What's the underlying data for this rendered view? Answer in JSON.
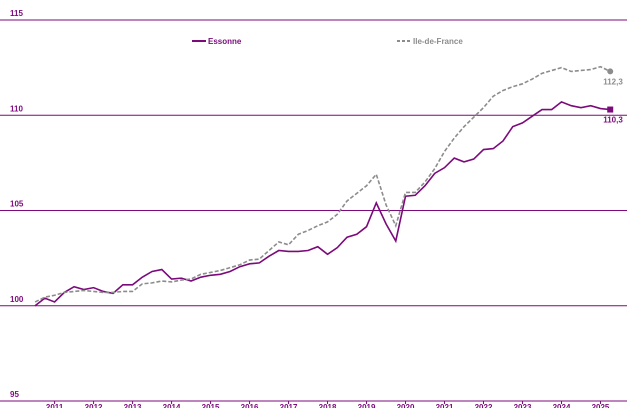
{
  "chart_data": {
    "type": "line",
    "x": [
      2011,
      2011.25,
      2011.5,
      2011.75,
      2012,
      2012.25,
      2012.5,
      2012.75,
      2013,
      2013.25,
      2013.5,
      2013.75,
      2014,
      2014.25,
      2014.5,
      2014.75,
      2015,
      2015.25,
      2015.5,
      2015.75,
      2016,
      2016.25,
      2016.5,
      2016.75,
      2017,
      2017.25,
      2017.5,
      2017.75,
      2018,
      2018.25,
      2018.5,
      2018.75,
      2019,
      2019.25,
      2019.5,
      2019.75,
      2020,
      2020.25,
      2020.5,
      2020.75,
      2021,
      2021.25,
      2021.5,
      2021.75,
      2022,
      2022.25,
      2022.5,
      2022.75,
      2023,
      2023.25,
      2023.5,
      2023.75,
      2024,
      2024.25,
      2024.5,
      2024.75,
      2025,
      2025.25,
      2025.5,
      2025.75
    ],
    "series": [
      {
        "name": "Essonne",
        "color": "#7b0a7b",
        "dashed": false,
        "marker": "square",
        "values": [
          100.0,
          100.4,
          100.2,
          100.7,
          101.0,
          100.85,
          100.95,
          100.75,
          100.65,
          101.1,
          101.1,
          101.5,
          101.8,
          101.9,
          101.4,
          101.45,
          101.3,
          101.5,
          101.6,
          101.65,
          101.8,
          102.05,
          102.2,
          102.25,
          102.6,
          102.9,
          102.85,
          102.85,
          102.9,
          103.1,
          102.7,
          103.05,
          103.6,
          103.75,
          104.15,
          105.4,
          104.3,
          103.4,
          105.75,
          105.8,
          106.3,
          106.95,
          107.25,
          107.75,
          107.55,
          107.7,
          108.2,
          108.25,
          108.65,
          109.4,
          109.6,
          109.95,
          110.3,
          110.3,
          110.7,
          110.5,
          110.4,
          110.5,
          110.35,
          110.3
        ],
        "value_labels": [
          null,
          null,
          null,
          null,
          null,
          null,
          null,
          null,
          null,
          null,
          null,
          null,
          null,
          null,
          null,
          null,
          null,
          null,
          null,
          null,
          null,
          null,
          null,
          null,
          null,
          null,
          null,
          null,
          null,
          null,
          null,
          null,
          null,
          null,
          null,
          null,
          null,
          null,
          null,
          null,
          null,
          null,
          null,
          null,
          null,
          null,
          null,
          null,
          null,
          null,
          null,
          null,
          null,
          null,
          null,
          null,
          null,
          null,
          null,
          "110,3"
        ]
      },
      {
        "name": "Ile-de-France",
        "color": "#8c8c8c",
        "dashed": true,
        "marker": "circle",
        "values": [
          100.2,
          100.45,
          100.55,
          100.7,
          100.75,
          100.8,
          100.75,
          100.7,
          100.7,
          100.75,
          100.75,
          101.15,
          101.2,
          101.3,
          101.25,
          101.35,
          101.4,
          101.65,
          101.75,
          101.85,
          102.0,
          102.15,
          102.4,
          102.45,
          102.9,
          103.35,
          103.2,
          103.75,
          103.95,
          104.2,
          104.4,
          104.8,
          105.5,
          105.9,
          106.3,
          106.9,
          105.3,
          104.2,
          105.95,
          105.95,
          106.5,
          107.2,
          108.1,
          108.8,
          109.4,
          109.9,
          110.4,
          111.0,
          111.3,
          111.5,
          111.65,
          111.9,
          112.2,
          112.35,
          112.5,
          112.3,
          112.35,
          112.4,
          112.55,
          112.3
        ],
        "value_labels": [
          null,
          null,
          null,
          null,
          null,
          null,
          null,
          null,
          null,
          null,
          null,
          null,
          null,
          null,
          null,
          null,
          null,
          null,
          null,
          null,
          null,
          null,
          null,
          null,
          null,
          null,
          null,
          null,
          null,
          null,
          null,
          null,
          null,
          null,
          null,
          null,
          null,
          null,
          null,
          null,
          null,
          null,
          null,
          null,
          null,
          null,
          null,
          null,
          null,
          null,
          null,
          null,
          null,
          null,
          null,
          null,
          null,
          null,
          null,
          "112,3"
        ]
      }
    ],
    "xlim": [
      2010.1,
      2026.18
    ],
    "xticks": [
      {
        "value": 2011.5,
        "label": "2011"
      },
      {
        "value": 2012.5,
        "label": "2012"
      },
      {
        "value": 2013.5,
        "label": "2013"
      },
      {
        "value": 2014.5,
        "label": "2014"
      },
      {
        "value": 2015.5,
        "label": "2015"
      },
      {
        "value": 2016.5,
        "label": "2016"
      },
      {
        "value": 2017.5,
        "label": "2017"
      },
      {
        "value": 2018.5,
        "label": "2018"
      },
      {
        "value": 2019.5,
        "label": "2019"
      },
      {
        "value": 2020.5,
        "label": "2020"
      },
      {
        "value": 2021.5,
        "label": "2021"
      },
      {
        "value": 2022.5,
        "label": "2022"
      },
      {
        "value": 2023.5,
        "label": "2023"
      },
      {
        "value": 2024.5,
        "label": "2024"
      },
      {
        "value": 2025.5,
        "label": "2025"
      }
    ],
    "ylim": [
      95,
      115
    ],
    "yticks": [
      95,
      100,
      105,
      110,
      115
    ],
    "grid": true,
    "grid_color": "#7b0a7b",
    "legend": "top"
  }
}
